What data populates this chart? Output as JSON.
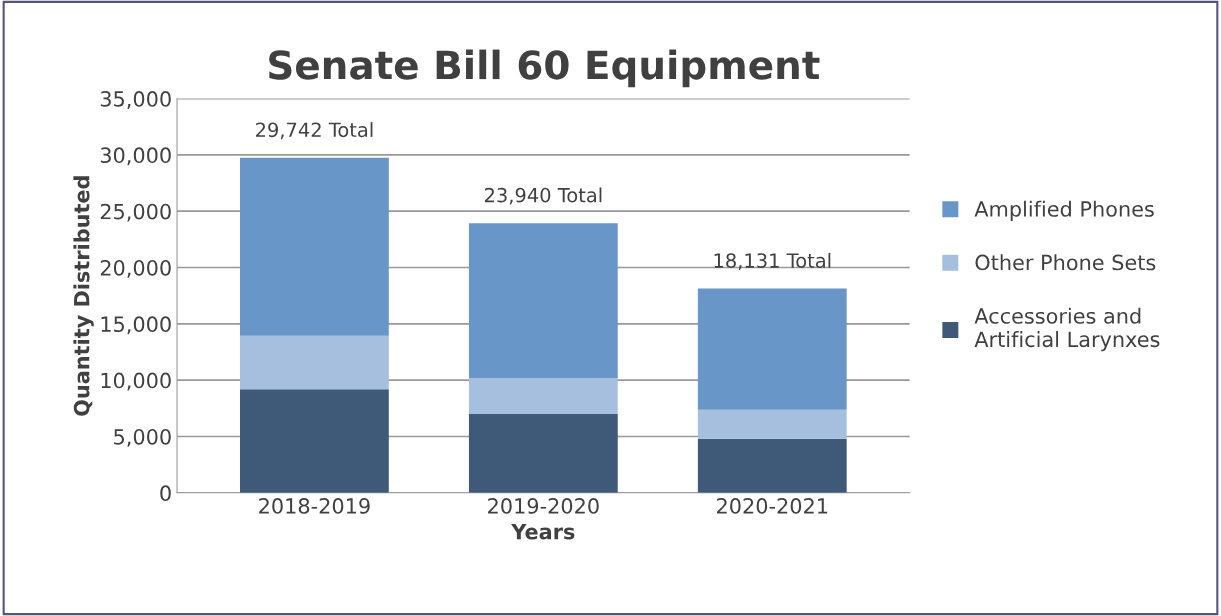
{
  "chart_data": {
    "type": "bar",
    "title": "Senate Bill 60 Equipment",
    "xlabel": "Years",
    "ylabel": "Quantity Distributed",
    "categories": [
      "2018-2019",
      "2019-2020",
      "2020-2021"
    ],
    "stacked": true,
    "series": [
      {
        "name": "Accessories and\nArtificial Larynxes",
        "color": "#3f5a78",
        "values": [
          9200,
          7000,
          4800
        ]
      },
      {
        "name": "Other Phone Sets",
        "color": "#a6bfdf",
        "values": [
          4750,
          3200,
          2570
        ]
      },
      {
        "name": "Amplified Phones",
        "color": "#6896c8",
        "values": [
          15790,
          13740,
          10760
        ]
      }
    ],
    "totals": [
      "29,742 Total",
      "23,940 Total",
      "18,131 Total"
    ],
    "ylim": [
      0,
      35000
    ],
    "yticks": [
      {
        "value": 0,
        "label": "0"
      },
      {
        "value": 5000,
        "label": "5,000"
      },
      {
        "value": 10000,
        "label": "10,000"
      },
      {
        "value": 15000,
        "label": "15,000"
      },
      {
        "value": 20000,
        "label": "20,000"
      },
      {
        "value": 25000,
        "label": "25,000"
      },
      {
        "value": 30000,
        "label": "30,000"
      },
      {
        "value": 35000,
        "label": "35,000"
      }
    ],
    "grid": "y",
    "legend": "right"
  }
}
